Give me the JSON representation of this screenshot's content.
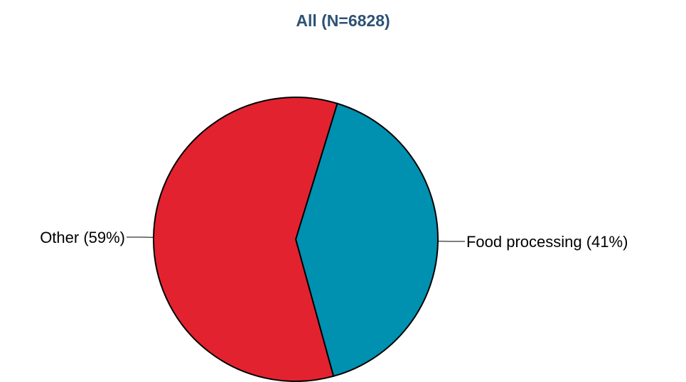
{
  "chart_data": {
    "type": "pie",
    "title": "All (N=6828)",
    "slices": [
      {
        "label": "Food processing (41%)",
        "category": "Food processing",
        "value": 41,
        "color": "#0090b0"
      },
      {
        "label": "Other (59%)",
        "category": "Other",
        "value": 59,
        "color": "#e32230"
      }
    ],
    "start_angle_deg": 17,
    "direction": "clockwise",
    "outline_color": "#000000",
    "legend": "none (labels on leader lines)"
  }
}
